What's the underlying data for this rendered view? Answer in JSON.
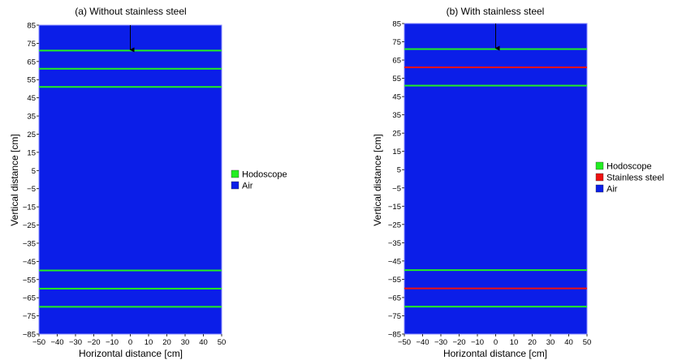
{
  "chart_data": [
    {
      "type": "heatmap",
      "title": "(a) Without stainless steel",
      "xlabel": "Horizontal distance [cm]",
      "ylabel": "Vertical distance [cm]",
      "xlim": [
        -50,
        50
      ],
      "ylim": [
        -85,
        85
      ],
      "xticks": [
        "−50",
        "−40",
        "−30",
        "−20",
        "−10",
        "0",
        "10",
        "20",
        "30",
        "40",
        "50"
      ],
      "yticks": [
        "85",
        "75",
        "65",
        "55",
        "45",
        "35",
        "25",
        "15",
        "5",
        "−5",
        "−15",
        "−25",
        "−35",
        "−45",
        "−55",
        "−65",
        "−75",
        "−85"
      ],
      "legend": [
        {
          "label": "Hodoscope",
          "color": "#22ee22"
        },
        {
          "label": "Air",
          "color": "#0b1ee8"
        }
      ],
      "legend_position": "right",
      "layers": [
        {
          "material": "Hodoscope",
          "y": 71
        },
        {
          "material": "Hodoscope",
          "y": 61
        },
        {
          "material": "Hodoscope",
          "y": 51
        },
        {
          "material": "Hodoscope",
          "y": -50
        },
        {
          "material": "Hodoscope",
          "y": -60
        },
        {
          "material": "Hodoscope",
          "y": -70
        }
      ],
      "arrow": {
        "x": 0,
        "y_from": 85,
        "y_to": 71
      }
    },
    {
      "type": "heatmap",
      "title": "(b) With stainless steel",
      "xlabel": "Horizontal distance [cm]",
      "ylabel": "Vertical distance [cm]",
      "xlim": [
        -50,
        50
      ],
      "ylim": [
        -85,
        85
      ],
      "xticks": [
        "−50",
        "−40",
        "−30",
        "−20",
        "−10",
        "0",
        "10",
        "20",
        "30",
        "40",
        "50"
      ],
      "yticks": [
        "85",
        "75",
        "65",
        "55",
        "45",
        "35",
        "25",
        "15",
        "5",
        "−5",
        "−15",
        "−25",
        "−35",
        "−45",
        "−55",
        "−65",
        "−75",
        "−85"
      ],
      "legend": [
        {
          "label": "Hodoscope",
          "color": "#22ee22"
        },
        {
          "label": "Stainless steel",
          "color": "#ee1111"
        },
        {
          "label": "Air",
          "color": "#0b1ee8"
        }
      ],
      "legend_position": "right",
      "layers": [
        {
          "material": "Hodoscope",
          "y": 71
        },
        {
          "material": "Stainless steel",
          "y": 61
        },
        {
          "material": "Hodoscope",
          "y": 51
        },
        {
          "material": "Hodoscope",
          "y": -50
        },
        {
          "material": "Stainless steel",
          "y": -60
        },
        {
          "material": "Hodoscope",
          "y": -70
        }
      ],
      "arrow": {
        "x": 0,
        "y_from": 85,
        "y_to": 71
      }
    }
  ],
  "colors": {
    "Hodoscope": "#22ee22",
    "Stainless steel": "#ee1111",
    "Air": "#0b1ee8",
    "Air-edge": "#8a8cff",
    "Arrow": "#000000"
  }
}
